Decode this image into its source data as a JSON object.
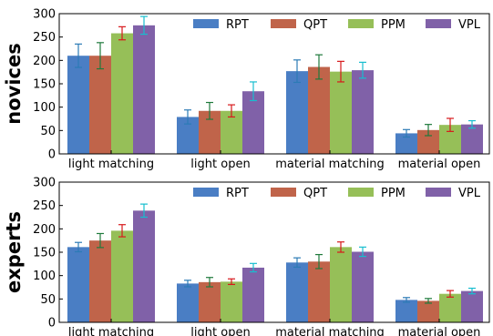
{
  "chart_data": [
    {
      "type": "bar",
      "panel_label": "novices",
      "categories": [
        "light matching",
        "light open",
        "material matching",
        "material open"
      ],
      "series": [
        {
          "name": "RPT",
          "color": "#4a7ec4",
          "values": [
            210,
            79,
            177,
            44
          ],
          "errors": [
            25,
            15,
            24,
            8
          ]
        },
        {
          "name": "QPT",
          "color": "#c0644a",
          "values": [
            210,
            92,
            186,
            51
          ],
          "errors": [
            28,
            18,
            26,
            12
          ]
        },
        {
          "name": "PPM",
          "color": "#96bf58",
          "values": [
            258,
            92,
            176,
            62
          ],
          "errors": [
            14,
            13,
            22,
            14
          ]
        },
        {
          "name": "VPL",
          "color": "#8061a8",
          "values": [
            275,
            134,
            179,
            63
          ],
          "errors": [
            19,
            20,
            17,
            8
          ]
        }
      ],
      "error_bar_colors": [
        "#2c7bb6",
        "#1f7a3c",
        "#d7191c",
        "#17becf"
      ],
      "ylim": [
        0,
        300
      ],
      "yticks": [
        0,
        50,
        100,
        150,
        200,
        250,
        300
      ],
      "legend": "top-right",
      "grid": false
    },
    {
      "type": "bar",
      "panel_label": "experts",
      "categories": [
        "light matching",
        "light open",
        "material matching",
        "material open"
      ],
      "series": [
        {
          "name": "RPT",
          "color": "#4a7ec4",
          "values": [
            161,
            83,
            128,
            48
          ],
          "errors": [
            10,
            7,
            10,
            5
          ]
        },
        {
          "name": "QPT",
          "color": "#c0644a",
          "values": [
            175,
            86,
            130,
            46
          ],
          "errors": [
            15,
            10,
            15,
            5
          ]
        },
        {
          "name": "PPM",
          "color": "#96bf58",
          "values": [
            196,
            87,
            161,
            61
          ],
          "errors": [
            13,
            6,
            11,
            7
          ]
        },
        {
          "name": "VPL",
          "color": "#8061a8",
          "values": [
            239,
            117,
            151,
            67
          ],
          "errors": [
            14,
            9,
            10,
            6
          ]
        }
      ],
      "error_bar_colors": [
        "#2c7bb6",
        "#1f7a3c",
        "#d7191c",
        "#17becf"
      ],
      "ylim": [
        0,
        300
      ],
      "yticks": [
        0,
        50,
        100,
        150,
        200,
        250,
        300
      ],
      "legend": "top-right",
      "grid": false
    }
  ]
}
